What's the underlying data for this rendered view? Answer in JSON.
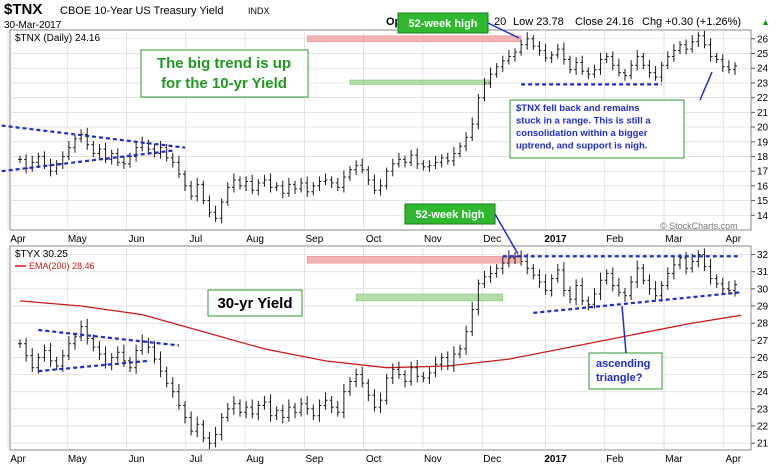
{
  "header": {
    "symbol": "$TNX",
    "name": "CBOE 10-Year US Treasury Yield",
    "exchange": "INDX",
    "date": "30-Mar-2017",
    "open_label": "Op",
    "low_label": "Low 23.78",
    "close_label": "Close 24.16",
    "chg_label": "Chg +0.30 (+1.26%)",
    "chg_arrow": "▲",
    "partial_value": "20",
    "watermark": "© StockCharts.com"
  },
  "colors": {
    "bars": "#1a1a1a",
    "trendline": "#1f2bd4",
    "resistance_zone": "#f4a8a8",
    "support_zone": "#a6d99a",
    "ema": "#cc1a1a",
    "callout_green_bg": "#ffffff",
    "callout_green_border": "#2e9a2e",
    "callout_green_text": "#1f9a1f",
    "callout_blue_text": "#1f2bd4",
    "label_badge_bg": "#2eb82e",
    "grid": "#d9d9d9"
  },
  "chart_data": [
    {
      "type": "ohlc",
      "title": "$TNX (Daily) 24.16",
      "months": [
        "Apr",
        "May",
        "Jun",
        "Jul",
        "Aug",
        "Sep",
        "Oct",
        "Nov",
        "Dec",
        "2017",
        "Feb",
        "Mar",
        "Apr"
      ],
      "yticks": [
        14,
        15,
        16,
        17,
        18,
        19,
        20,
        21,
        22,
        23,
        24,
        25,
        26
      ],
      "ylim": [
        13,
        26.6
      ],
      "grid": true,
      "series": [
        {
          "name": "$TNX",
          "close": [
            17.8,
            17.2,
            17.6,
            18.0,
            17.4,
            17.0,
            17.5,
            18.0,
            18.6,
            19.2,
            19.5,
            18.8,
            18.2,
            18.5,
            17.8,
            18.2,
            17.6,
            17.5,
            18.0,
            18.6,
            18.9,
            18.5,
            18.2,
            18.6,
            17.9,
            17.6,
            16.8,
            16.0,
            15.3,
            16.1,
            15.0,
            14.2,
            13.8,
            14.9,
            15.9,
            16.4,
            16.0,
            16.3,
            15.7,
            16.2,
            16.4,
            15.9,
            16.0,
            15.5,
            16.1,
            15.8,
            16.2,
            15.6,
            16.0,
            16.3,
            16.4,
            16.2,
            15.9,
            16.6,
            17.1,
            17.4,
            17.1,
            16.4,
            15.7,
            16.0,
            17.0,
            17.5,
            17.8,
            17.6,
            18.1,
            17.5,
            17.3,
            17.4,
            17.6,
            17.9,
            17.7,
            18.2,
            18.7,
            19.3,
            20.2,
            22.0,
            23.0,
            23.6,
            24.1,
            24.5,
            24.8,
            25.1,
            25.6,
            26.0,
            25.5,
            25.2,
            24.7,
            24.9,
            25.3,
            24.6,
            23.9,
            24.4,
            23.8,
            23.6,
            23.9,
            24.6,
            24.8,
            24.2,
            23.7,
            23.5,
            24.2,
            24.8,
            24.2,
            23.7,
            23.4,
            24.2,
            24.8,
            25.2,
            25.6,
            25.3,
            25.8,
            26.2,
            25.6,
            24.8,
            24.6,
            24.1,
            23.9,
            24.16
          ]
        },
        {
          "name": "$TNX (annotations)"
        }
      ],
      "zones": [
        {
          "kind": "resistance",
          "from": 47,
          "to": 82,
          "y_low": 26.2,
          "y_high": 25.8
        },
        {
          "kind": "support",
          "from": 54,
          "to": 77,
          "y_low": 23.2,
          "y_high": 22.9
        }
      ],
      "annotations": {
        "callout_big_trend": "The big trend is up\nfor the 10-yr Yield",
        "badge_52wk": "52-week high",
        "note_range": "$TNX fell back and remains\nstuck in a range. This is still a\nconsolidation within a bigger\nuptrend, and support is nigh."
      }
    },
    {
      "type": "ohlc",
      "title": "$TYX 30.25",
      "ema_label": "EMA(200) 28.46",
      "months": [
        "Apr",
        "May",
        "Jun",
        "Jul",
        "Aug",
        "Sep",
        "Oct",
        "Nov",
        "Dec",
        "2017",
        "Feb",
        "Mar",
        "Apr"
      ],
      "yticks": [
        21,
        22,
        23,
        24,
        25,
        26,
        27,
        28,
        29,
        30,
        31,
        32
      ],
      "ylim": [
        20.6,
        32.5
      ],
      "grid": true,
      "series": [
        {
          "name": "$TYX",
          "close": [
            26.8,
            26.1,
            25.4,
            26.0,
            26.4,
            25.8,
            25.5,
            26.1,
            26.8,
            27.2,
            27.8,
            27.1,
            26.6,
            26.2,
            25.6,
            26.0,
            26.3,
            25.8,
            25.4,
            26.4,
            26.9,
            26.6,
            25.9,
            25.2,
            24.5,
            24.0,
            23.2,
            22.5,
            21.7,
            22.1,
            21.3,
            21.0,
            21.5,
            22.5,
            23.0,
            23.3,
            22.8,
            23.1,
            22.7,
            23.2,
            23.4,
            22.6,
            22.9,
            22.5,
            23.1,
            22.8,
            23.3,
            23.0,
            22.6,
            23.2,
            23.5,
            23.1,
            22.8,
            24.0,
            24.6,
            25.0,
            24.5,
            23.8,
            23.1,
            23.5,
            24.8,
            25.3,
            25.0,
            24.6,
            25.4,
            24.9,
            24.8,
            25.1,
            25.6,
            26.0,
            25.5,
            26.2,
            26.5,
            27.5,
            28.8,
            30.3,
            30.7,
            30.9,
            31.2,
            31.5,
            31.8,
            31.9,
            31.6,
            31.2,
            30.8,
            30.4,
            29.9,
            30.6,
            31.1,
            29.9,
            29.4,
            30.2,
            29.3,
            29.1,
            29.7,
            30.5,
            30.9,
            30.2,
            29.8,
            29.6,
            30.4,
            31.2,
            30.5,
            30.0,
            29.6,
            30.2,
            30.9,
            31.4,
            31.8,
            31.2,
            31.6,
            32.0,
            31.3,
            30.6,
            30.3,
            30.0,
            29.9,
            30.25
          ]
        },
        {
          "name": "EMA(200)",
          "values_at": [
            [
              0,
              29.3
            ],
            [
              10,
              29.0
            ],
            [
              20,
              28.5
            ],
            [
              30,
              27.5
            ],
            [
              40,
              26.5
            ],
            [
              50,
              25.8
            ],
            [
              60,
              25.4
            ],
            [
              70,
              25.5
            ],
            [
              80,
              25.9
            ],
            [
              90,
              26.6
            ],
            [
              100,
              27.3
            ],
            [
              110,
              28.0
            ],
            [
              118,
              28.46
            ]
          ]
        }
      ],
      "zones": [
        {
          "kind": "resistance",
          "from": 47,
          "to": 82,
          "y_low": 31.9,
          "y_high": 31.5
        },
        {
          "kind": "support",
          "from": 55,
          "to": 79,
          "y_low": 29.7,
          "y_high": 29.3
        }
      ],
      "annotations": {
        "callout_30yr": "30-yr Yield",
        "badge_52wk": "52-week high",
        "note_triangle": "ascending\ntriangle?"
      }
    }
  ]
}
